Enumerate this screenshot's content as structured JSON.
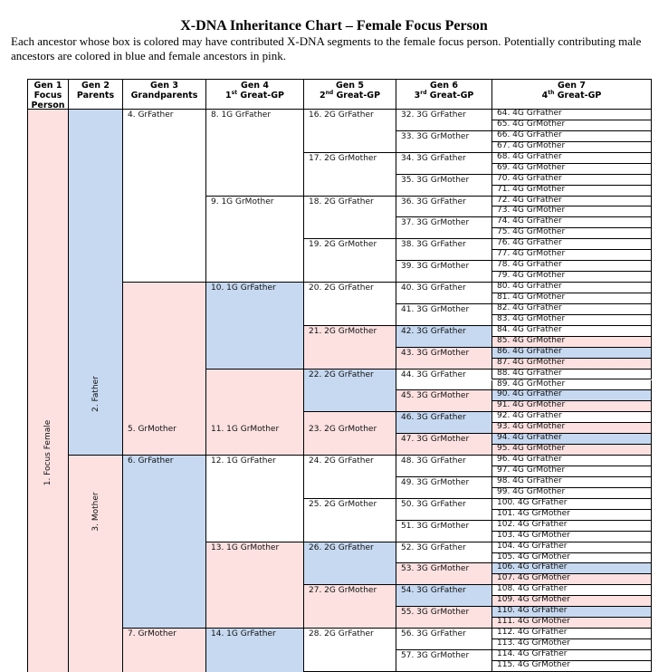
{
  "title": "X-DNA Inheritance Chart – Female Focus Person",
  "intro": "Each ancestor whose box is colored may have contributed X-DNA segments to the female focus person. Potentially contributing male ancestors are colored in blue and female ancestors in pink.",
  "colors": {
    "blue": "#c6d9f1",
    "pink": "#fde1e1",
    "none": "#ffffff",
    "border": "#000000"
  },
  "headers": [
    {
      "line1": "Gen 1",
      "line2": "Focus",
      "line3": "Person"
    },
    {
      "line1": "Gen 2",
      "line2": "Parents"
    },
    {
      "line1": "Gen 3",
      "line2": "Grandparents"
    },
    {
      "line1": "Gen 4",
      "ord": "1",
      "sup": "st",
      "rest": " Great-GP"
    },
    {
      "line1": "Gen 5",
      "ord": "2",
      "sup": "nd",
      "rest": " Great-GP"
    },
    {
      "line1": "Gen 6",
      "ord": "3",
      "sup": "rd",
      "rest": " Great-GP"
    },
    {
      "line1": "Gen 7",
      "ord": "4",
      "sup": "th",
      "rest": " Great-GP"
    }
  ],
  "generations": [
    {
      "start": 1,
      "people": [
        {
          "label": "1. Focus Female",
          "fill": "pink"
        }
      ]
    },
    {
      "start": 2,
      "people": [
        {
          "label": "2. Father",
          "fill": "blue"
        },
        {
          "label": "3. Mother",
          "fill": "pink"
        }
      ]
    },
    {
      "start": 4,
      "people": [
        {
          "label": "4. GrFather",
          "fill": "none"
        },
        {
          "label": "5. GrMother",
          "fill": "pink"
        },
        {
          "label": "6. GrFather",
          "fill": "blue"
        },
        {
          "label": "7. GrMother",
          "fill": "pink"
        }
      ]
    },
    {
      "start": 8,
      "people": [
        {
          "label": "8. 1G GrFather",
          "fill": "none"
        },
        {
          "label": "9. 1G GrMother",
          "fill": "none"
        },
        {
          "label": "10. 1G GrFather",
          "fill": "blue"
        },
        {
          "label": "11. 1G GrMother",
          "fill": "pink"
        },
        {
          "label": "12. 1G GrFather",
          "fill": "none"
        },
        {
          "label": "13. 1G GrMother",
          "fill": "pink"
        },
        {
          "label": "14. 1G GrFather",
          "fill": "blue"
        }
      ]
    },
    {
      "start": 16,
      "people": [
        {
          "label": "16. 2G GrFather",
          "fill": "none"
        },
        {
          "label": "17. 2G GrMother",
          "fill": "none"
        },
        {
          "label": "18. 2G GrFather",
          "fill": "none"
        },
        {
          "label": "19. 2G GrMother",
          "fill": "none"
        },
        {
          "label": "20. 2G GrFather",
          "fill": "none"
        },
        {
          "label": "21. 2G GrMother",
          "fill": "pink"
        },
        {
          "label": "22. 2G GrFather",
          "fill": "blue"
        },
        {
          "label": "23. 2G GrMother",
          "fill": "pink"
        },
        {
          "label": "24. 2G GrFather",
          "fill": "none"
        },
        {
          "label": "25. 2G GrMother",
          "fill": "none"
        },
        {
          "label": "26. 2G GrFather",
          "fill": "blue"
        },
        {
          "label": "27. 2G GrMother",
          "fill": "pink"
        },
        {
          "label": "28. 2G GrFather",
          "fill": "none"
        }
      ]
    },
    {
      "start": 32,
      "people": [
        {
          "label": "32. 3G GrFather",
          "fill": "none"
        },
        {
          "label": "33. 3G GrMother",
          "fill": "none"
        },
        {
          "label": "34. 3G GrFather",
          "fill": "none"
        },
        {
          "label": "35. 3G GrMother",
          "fill": "none"
        },
        {
          "label": "36. 3G GrFather",
          "fill": "none"
        },
        {
          "label": "37. 3G GrMother",
          "fill": "none"
        },
        {
          "label": "38. 3G GrFather",
          "fill": "none"
        },
        {
          "label": "39. 3G GrMother",
          "fill": "none"
        },
        {
          "label": "40. 3G GrFather",
          "fill": "none"
        },
        {
          "label": "41. 3G GrMother",
          "fill": "none"
        },
        {
          "label": "42. 3G GrFather",
          "fill": "blue"
        },
        {
          "label": "43. 3G GrMother",
          "fill": "pink"
        },
        {
          "label": "44. 3G GrFather",
          "fill": "none"
        },
        {
          "label": "45. 3G GrMother",
          "fill": "pink"
        },
        {
          "label": "46. 3G GrFather",
          "fill": "blue"
        },
        {
          "label": "47. 3G GrMother",
          "fill": "pink"
        },
        {
          "label": "48. 3G GrFather",
          "fill": "none"
        },
        {
          "label": "49. 3G GrMother",
          "fill": "none"
        },
        {
          "label": "50. 3G GrFather",
          "fill": "none"
        },
        {
          "label": "51. 3G GrMother",
          "fill": "none"
        },
        {
          "label": "52. 3G GrFather",
          "fill": "none"
        },
        {
          "label": "53. 3G GrMother",
          "fill": "pink"
        },
        {
          "label": "54. 3G GrFather",
          "fill": "blue"
        },
        {
          "label": "55. 3G GrMother",
          "fill": "pink"
        },
        {
          "label": "56. 3G GrFather",
          "fill": "none"
        },
        {
          "label": "57. 3G GrMother",
          "fill": "none"
        }
      ]
    },
    {
      "start": 64,
      "people": [
        {
          "label": "64. 4G GrFather",
          "fill": "none"
        },
        {
          "label": "65. 4G GrMother",
          "fill": "none"
        },
        {
          "label": "66. 4G GrFather",
          "fill": "none"
        },
        {
          "label": "67. 4G GrMother",
          "fill": "none"
        },
        {
          "label": "68. 4G GrFather",
          "fill": "none"
        },
        {
          "label": "69. 4G GrMother",
          "fill": "none"
        },
        {
          "label": "70. 4G GrFather",
          "fill": "none"
        },
        {
          "label": "71. 4G GrMother",
          "fill": "none"
        },
        {
          "label": "72. 4G GrFather",
          "fill": "none"
        },
        {
          "label": "73. 4G GrMother",
          "fill": "none"
        },
        {
          "label": "74. 4G GrFather",
          "fill": "none"
        },
        {
          "label": "75. 4G GrMother",
          "fill": "none"
        },
        {
          "label": "76. 4G GrFather",
          "fill": "none"
        },
        {
          "label": "77. 4G GrMother",
          "fill": "none"
        },
        {
          "label": "78. 4G GrFather",
          "fill": "none"
        },
        {
          "label": "79. 4G GrMother",
          "fill": "none"
        },
        {
          "label": "80. 4G GrFather",
          "fill": "none"
        },
        {
          "label": "81. 4G GrMother",
          "fill": "none"
        },
        {
          "label": "82. 4G GrFather",
          "fill": "none"
        },
        {
          "label": "83. 4G GrMother",
          "fill": "none"
        },
        {
          "label": "84. 4G GrFather",
          "fill": "none"
        },
        {
          "label": "85. 4G GrMother",
          "fill": "pink"
        },
        {
          "label": "86. 4G GrFather",
          "fill": "blue"
        },
        {
          "label": "87. 4G GrMother",
          "fill": "pink"
        },
        {
          "label": "88. 4G GrFather",
          "fill": "none"
        },
        {
          "label": "89. 4G GrMother",
          "fill": "none"
        },
        {
          "label": "90. 4G GrFather",
          "fill": "blue"
        },
        {
          "label": "91. 4G GrMother",
          "fill": "pink"
        },
        {
          "label": "92. 4G GrFather",
          "fill": "none"
        },
        {
          "label": "93. 4G GrMother",
          "fill": "pink"
        },
        {
          "label": "94. 4G GrFather",
          "fill": "blue"
        },
        {
          "label": "95. 4G GrMother",
          "fill": "pink"
        },
        {
          "label": "96. 4G GrFather",
          "fill": "none"
        },
        {
          "label": "97. 4G GrMother",
          "fill": "none"
        },
        {
          "label": "98. 4G GrFather",
          "fill": "none"
        },
        {
          "label": "99. 4G GrMother",
          "fill": "none"
        },
        {
          "label": "100. 4G GrFather",
          "fill": "none"
        },
        {
          "label": "101. 4G GrMother",
          "fill": "none"
        },
        {
          "label": "102. 4G GrFather",
          "fill": "none"
        },
        {
          "label": "103. 4G GrMother",
          "fill": "none"
        },
        {
          "label": "104. 4G GrFather",
          "fill": "none"
        },
        {
          "label": "105. 4G GrMother",
          "fill": "none"
        },
        {
          "label": "106. 4G GrFather",
          "fill": "blue"
        },
        {
          "label": "107. 4G GrMother",
          "fill": "pink"
        },
        {
          "label": "108. 4G GrFather",
          "fill": "none"
        },
        {
          "label": "109. 4G GrMother",
          "fill": "pink"
        },
        {
          "label": "110. 4G GrFather",
          "fill": "blue"
        },
        {
          "label": "111. 4G GrMother",
          "fill": "pink"
        },
        {
          "label": "112. 4G GrFather",
          "fill": "none"
        },
        {
          "label": "113. 4G GrMother",
          "fill": "none"
        },
        {
          "label": "114. 4G GrFather",
          "fill": "none"
        },
        {
          "label": "115. 4G GrMother",
          "fill": "none"
        }
      ]
    }
  ]
}
